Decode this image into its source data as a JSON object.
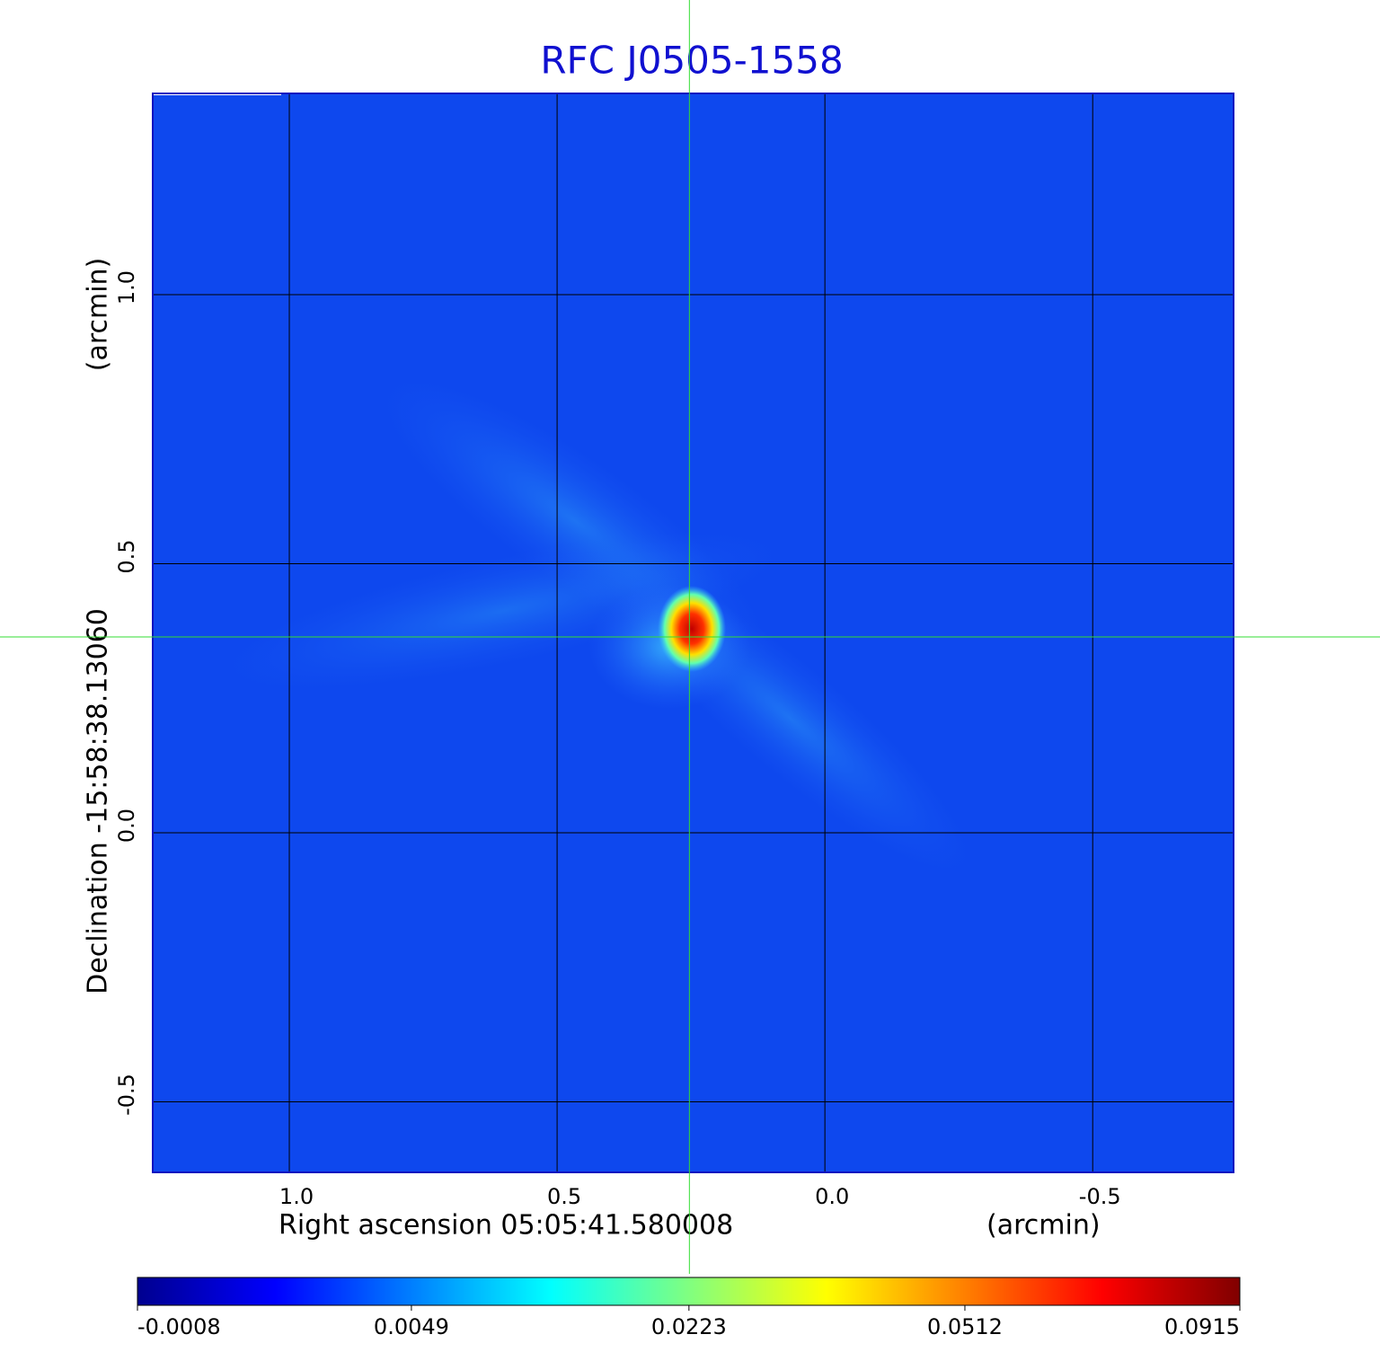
{
  "chart_data": {
    "type": "image",
    "title": "RFC J0505-1558",
    "title_color": "#1010d0",
    "x_label": "Right ascension  05:05:41.580008",
    "x_unit": "(arcmin)",
    "y_label": "Declination  -15:58:38.13060",
    "y_unit": "(arcmin)",
    "xlim": [
      1.255,
      -0.763
    ],
    "ylim": [
      -0.631,
      1.374
    ],
    "xticks": [
      {
        "value": 1,
        "label": "1.0"
      },
      0.5,
      {
        "value": 0,
        "label": "0.0"
      },
      -0.5
    ],
    "yticks": [
      -0.5,
      {
        "value": 0,
        "label": "0.0"
      },
      0.5,
      {
        "value": 1,
        "label": "1.0"
      }
    ],
    "grid": true,
    "marker": {
      "x": 0.253,
      "y": 0.364,
      "color": "#33dd33"
    },
    "colorbar": {
      "lim": [
        -0.0008,
        0.0915
      ],
      "scale": "sqrt",
      "ticks": [
        -0.0008,
        0.0049,
        0.0223,
        0.0512,
        0.0915
      ],
      "colormap": [
        "#00008f",
        "#0000ff",
        "#0080ff",
        "#00ffff",
        "#80ff80",
        "#ffff00",
        "#ff8000",
        "#ff0000",
        "#800000"
      ]
    }
  }
}
